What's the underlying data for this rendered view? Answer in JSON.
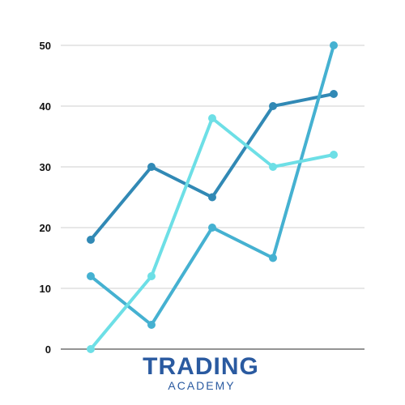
{
  "chart_data": {
    "type": "line",
    "x": [
      1,
      2,
      3,
      4,
      5
    ],
    "ylim": [
      0,
      50
    ],
    "yticks": [
      0,
      10,
      20,
      30,
      40,
      50
    ],
    "grid": true,
    "series": [
      {
        "values": [
          18,
          30,
          25,
          40,
          42
        ],
        "color": "#3189b5"
      },
      {
        "values": [
          12,
          4,
          20,
          15,
          50
        ],
        "color": "#45b1d1"
      },
      {
        "values": [
          0,
          12,
          38,
          30,
          32
        ],
        "color": "#6ddfe6"
      }
    ]
  },
  "brand": {
    "title": "TRADING",
    "subtitle": "ACADEMY",
    "title_color": "#2a5aa0",
    "subtitle_color": "#2a5aa0"
  },
  "colors": {
    "grid": "#cfcfcf",
    "axis": "#555555"
  }
}
